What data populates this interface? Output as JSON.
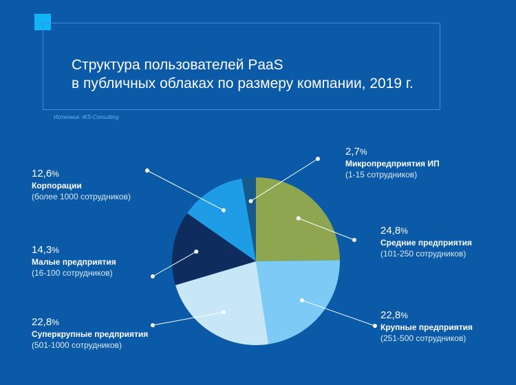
{
  "title": {
    "line1": "Структура пользователей PaaS",
    "line2": "в публичных облаках по размеру компании, 2019 г."
  },
  "source": "Источник: iKS-Consulting",
  "colors": {
    "background": "#0b5aa8",
    "accent": "#12b4f5"
  },
  "chart_data": {
    "type": "pie",
    "unit": "%",
    "slices": [
      {
        "pct": "24,8",
        "value": 24.8,
        "name": "Средние предприятия",
        "sub": "(101-250 сотрудников)",
        "color": "#8fa650"
      },
      {
        "pct": "22,8",
        "value": 22.8,
        "name": "Крупные предприятия",
        "sub": "(251-500 сотрудников)",
        "color": "#7ccaf5"
      },
      {
        "pct": "22,8",
        "value": 22.8,
        "name": "Суперкрупные предприятия",
        "sub": "(501-1000 сотрудников)",
        "color": "#c7e6f8"
      },
      {
        "pct": "14,3",
        "value": 14.3,
        "name": "Малые предприятия",
        "sub": "(16-100 сотрудников)",
        "color": "#0f2c5e"
      },
      {
        "pct": "12,6",
        "value": 12.6,
        "name": "Корпорации",
        "sub": "(более 1000 сотрудников)",
        "color": "#1e9de6"
      },
      {
        "pct": "2,7",
        "value": 2.7,
        "name": "Микропредприятия ИП",
        "sub": "(1-15 сотрудников)",
        "color": "#155a8a"
      }
    ]
  }
}
